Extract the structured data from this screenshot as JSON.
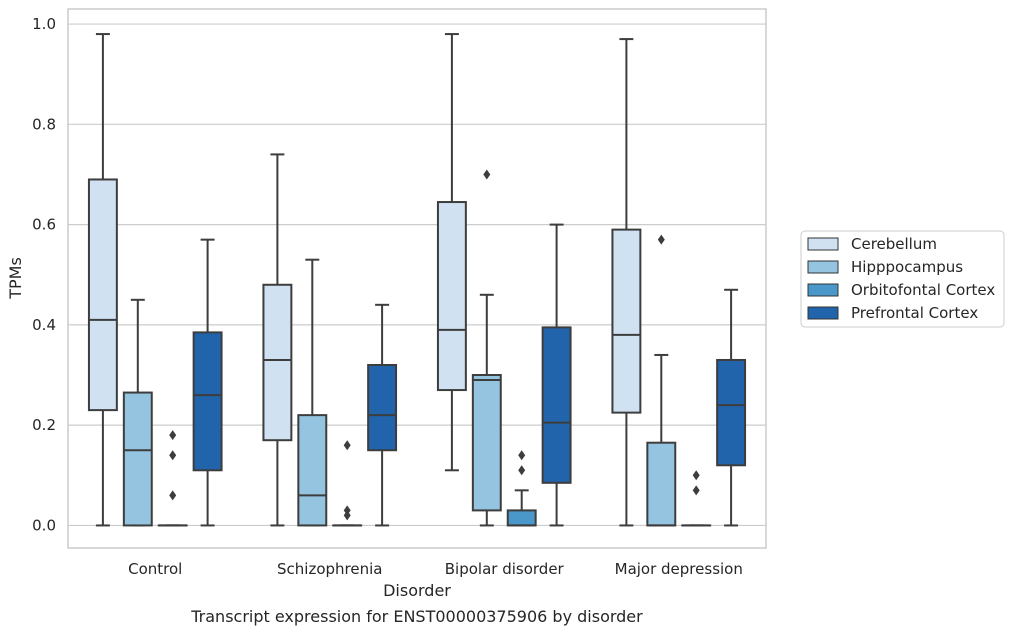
{
  "chart_data": {
    "type": "box",
    "caption": "Transcript expression for ENST00000375906 by disorder",
    "xlabel": "Disorder",
    "ylabel": "TPMs",
    "ylim": [
      -0.045,
      1.03
    ],
    "yticks": [
      "0.0",
      "0.2",
      "0.4",
      "0.6",
      "0.8",
      "1.0"
    ],
    "grid": "horizontal",
    "legend_placement": "right",
    "categories": [
      "Control",
      "Schizophrenia",
      "Bipolar disorder",
      "Major depression"
    ],
    "series": [
      {
        "name": "Cerebellum",
        "color": "#d0e1f2",
        "boxes": [
          {
            "whislo": 0.0,
            "q1": 0.23,
            "med": 0.41,
            "q3": 0.69,
            "whishi": 0.98,
            "fliers": []
          },
          {
            "whislo": 0.0,
            "q1": 0.17,
            "med": 0.33,
            "q3": 0.48,
            "whishi": 0.74,
            "fliers": []
          },
          {
            "whislo": 0.11,
            "q1": 0.27,
            "med": 0.39,
            "q3": 0.645,
            "whishi": 0.98,
            "fliers": []
          },
          {
            "whislo": 0.0,
            "q1": 0.225,
            "med": 0.38,
            "q3": 0.59,
            "whishi": 0.97,
            "fliers": []
          }
        ]
      },
      {
        "name": "Hipppocampus",
        "color": "#94c4df",
        "boxes": [
          {
            "whislo": 0.0,
            "q1": 0.0,
            "med": 0.15,
            "q3": 0.265,
            "whishi": 0.45,
            "fliers": []
          },
          {
            "whislo": 0.0,
            "q1": 0.0,
            "med": 0.06,
            "q3": 0.22,
            "whishi": 0.53,
            "fliers": []
          },
          {
            "whislo": 0.0,
            "q1": 0.03,
            "med": 0.29,
            "q3": 0.3,
            "whishi": 0.46,
            "fliers": [
              0.7
            ]
          },
          {
            "whislo": 0.0,
            "q1": 0.0,
            "med": 0.0,
            "q3": 0.165,
            "whishi": 0.34,
            "fliers": [
              0.57
            ]
          }
        ]
      },
      {
        "name": "Orbitofontal Cortex",
        "color": "#4a98c9",
        "boxes": [
          {
            "whislo": 0.0,
            "q1": 0.0,
            "med": 0.0,
            "q3": 0.0,
            "whishi": 0.0,
            "fliers": [
              0.06,
              0.14,
              0.18
            ]
          },
          {
            "whislo": 0.0,
            "q1": 0.0,
            "med": 0.0,
            "q3": 0.0,
            "whishi": 0.0,
            "fliers": [
              0.02,
              0.03,
              0.16
            ]
          },
          {
            "whislo": 0.0,
            "q1": 0.0,
            "med": 0.0,
            "q3": 0.03,
            "whishi": 0.07,
            "fliers": [
              0.11,
              0.14
            ]
          },
          {
            "whislo": 0.0,
            "q1": 0.0,
            "med": 0.0,
            "q3": 0.0,
            "whishi": 0.0,
            "fliers": [
              0.07,
              0.1
            ]
          }
        ]
      },
      {
        "name": "Prefrontal Cortex",
        "color": "#2164ab",
        "boxes": [
          {
            "whislo": 0.0,
            "q1": 0.11,
            "med": 0.26,
            "q3": 0.385,
            "whishi": 0.57,
            "fliers": []
          },
          {
            "whislo": 0.0,
            "q1": 0.15,
            "med": 0.22,
            "q3": 0.32,
            "whishi": 0.44,
            "fliers": []
          },
          {
            "whislo": 0.0,
            "q1": 0.085,
            "med": 0.205,
            "q3": 0.395,
            "whishi": 0.6,
            "fliers": []
          },
          {
            "whislo": 0.0,
            "q1": 0.12,
            "med": 0.24,
            "q3": 0.33,
            "whishi": 0.47,
            "fliers": []
          }
        ]
      }
    ]
  }
}
